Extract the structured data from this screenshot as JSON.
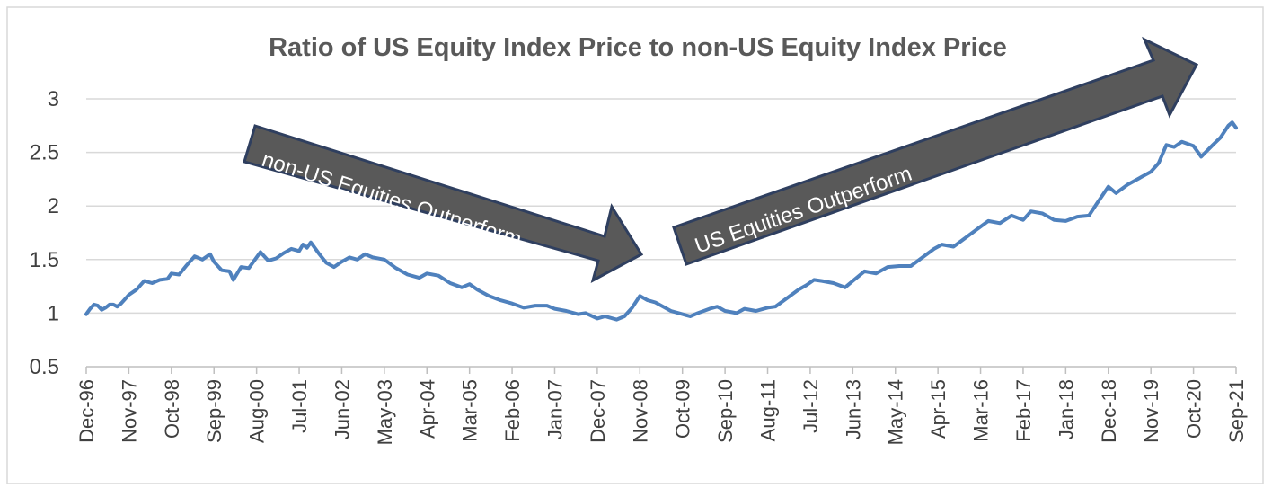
{
  "chart_data": {
    "type": "line",
    "title": "Ratio of US Equity Index Price to non-US Equity Index Price",
    "xlabel": "",
    "ylabel": "",
    "ylim": [
      0.5,
      3
    ],
    "yticks": [
      "0.5",
      "1",
      "1.5",
      "2",
      "2.5",
      "3"
    ],
    "grid": true,
    "x_tick_labels": [
      "Dec-96",
      "Nov-97",
      "Oct-98",
      "Sep-99",
      "Aug-00",
      "Jul-01",
      "Jun-02",
      "May-03",
      "Apr-04",
      "Mar-05",
      "Feb-06",
      "Jan-07",
      "Dec-07",
      "Nov-08",
      "Oct-09",
      "Sep-10",
      "Aug-11",
      "Jul-12",
      "Jun-13",
      "May-14",
      "Apr-15",
      "Mar-16",
      "Feb-17",
      "Jan-18",
      "Dec-18",
      "Nov-19",
      "Oct-20",
      "Sep-21"
    ],
    "annotations": [
      {
        "text": "non-US Equities Outperform",
        "direction": "down"
      },
      {
        "text": "US Equities Outperform",
        "direction": "up"
      }
    ],
    "series": [
      {
        "color": "#4f81bd",
        "points": [
          [
            "1996-12",
            0.99
          ],
          [
            "1997-01",
            1.04
          ],
          [
            "1997-02",
            1.08
          ],
          [
            "1997-03",
            1.07
          ],
          [
            "1997-04",
            1.03
          ],
          [
            "1997-05",
            1.05
          ],
          [
            "1997-06",
            1.08
          ],
          [
            "1997-07",
            1.08
          ],
          [
            "1997-08",
            1.06
          ],
          [
            "1997-09",
            1.09
          ],
          [
            "1997-10",
            1.13
          ],
          [
            "1997-11",
            1.17
          ],
          [
            "1998-01",
            1.22
          ],
          [
            "1998-03",
            1.3
          ],
          [
            "1998-05",
            1.28
          ],
          [
            "1998-07",
            1.31
          ],
          [
            "1998-09",
            1.32
          ],
          [
            "1998-10",
            1.37
          ],
          [
            "1998-12",
            1.36
          ],
          [
            "1999-02",
            1.45
          ],
          [
            "1999-04",
            1.53
          ],
          [
            "1999-06",
            1.5
          ],
          [
            "1999-08",
            1.55
          ],
          [
            "1999-09",
            1.48
          ],
          [
            "1999-11",
            1.4
          ],
          [
            "2000-01",
            1.39
          ],
          [
            "2000-02",
            1.31
          ],
          [
            "2000-04",
            1.43
          ],
          [
            "2000-06",
            1.42
          ],
          [
            "2000-08",
            1.52
          ],
          [
            "2000-09",
            1.57
          ],
          [
            "2000-11",
            1.49
          ],
          [
            "2001-01",
            1.51
          ],
          [
            "2001-03",
            1.56
          ],
          [
            "2001-05",
            1.6
          ],
          [
            "2001-07",
            1.58
          ],
          [
            "2001-08",
            1.64
          ],
          [
            "2001-09",
            1.61
          ],
          [
            "2001-10",
            1.66
          ],
          [
            "2001-12",
            1.56
          ],
          [
            "2002-02",
            1.47
          ],
          [
            "2002-04",
            1.43
          ],
          [
            "2002-06",
            1.48
          ],
          [
            "2002-08",
            1.52
          ],
          [
            "2002-10",
            1.5
          ],
          [
            "2002-12",
            1.55
          ],
          [
            "2003-02",
            1.52
          ],
          [
            "2003-05",
            1.5
          ],
          [
            "2003-08",
            1.42
          ],
          [
            "2003-11",
            1.36
          ],
          [
            "2004-02",
            1.33
          ],
          [
            "2004-04",
            1.37
          ],
          [
            "2004-07",
            1.35
          ],
          [
            "2004-10",
            1.28
          ],
          [
            "2005-01",
            1.24
          ],
          [
            "2005-03",
            1.27
          ],
          [
            "2005-05",
            1.22
          ],
          [
            "2005-08",
            1.16
          ],
          [
            "2005-11",
            1.12
          ],
          [
            "2006-02",
            1.09
          ],
          [
            "2006-05",
            1.05
          ],
          [
            "2006-08",
            1.07
          ],
          [
            "2006-11",
            1.07
          ],
          [
            "2007-01",
            1.04
          ],
          [
            "2007-04",
            1.02
          ],
          [
            "2007-07",
            0.99
          ],
          [
            "2007-09",
            1.0
          ],
          [
            "2007-12",
            0.95
          ],
          [
            "2008-02",
            0.97
          ],
          [
            "2008-05",
            0.94
          ],
          [
            "2008-07",
            0.97
          ],
          [
            "2008-09",
            1.05
          ],
          [
            "2008-11",
            1.16
          ],
          [
            "2009-01",
            1.12
          ],
          [
            "2009-03",
            1.1
          ],
          [
            "2009-05",
            1.06
          ],
          [
            "2009-07",
            1.02
          ],
          [
            "2009-10",
            0.99
          ],
          [
            "2009-12",
            0.97
          ],
          [
            "2010-02",
            1.0
          ],
          [
            "2010-05",
            1.04
          ],
          [
            "2010-07",
            1.06
          ],
          [
            "2010-09",
            1.02
          ],
          [
            "2010-12",
            1.0
          ],
          [
            "2011-02",
            1.04
          ],
          [
            "2011-05",
            1.02
          ],
          [
            "2011-08",
            1.05
          ],
          [
            "2011-10",
            1.06
          ],
          [
            "2012-01",
            1.14
          ],
          [
            "2012-04",
            1.22
          ],
          [
            "2012-06",
            1.26
          ],
          [
            "2012-08",
            1.31
          ],
          [
            "2012-10",
            1.3
          ],
          [
            "2013-01",
            1.28
          ],
          [
            "2013-04",
            1.24
          ],
          [
            "2013-06",
            1.3
          ],
          [
            "2013-09",
            1.39
          ],
          [
            "2013-12",
            1.37
          ],
          [
            "2014-03",
            1.43
          ],
          [
            "2014-06",
            1.44
          ],
          [
            "2014-09",
            1.44
          ],
          [
            "2014-12",
            1.52
          ],
          [
            "2015-03",
            1.6
          ],
          [
            "2015-05",
            1.64
          ],
          [
            "2015-08",
            1.62
          ],
          [
            "2015-11",
            1.7
          ],
          [
            "2016-02",
            1.78
          ],
          [
            "2016-05",
            1.86
          ],
          [
            "2016-08",
            1.84
          ],
          [
            "2016-11",
            1.91
          ],
          [
            "2017-02",
            1.87
          ],
          [
            "2017-04",
            1.95
          ],
          [
            "2017-07",
            1.93
          ],
          [
            "2017-10",
            1.87
          ],
          [
            "2018-01",
            1.86
          ],
          [
            "2018-04",
            1.9
          ],
          [
            "2018-07",
            1.91
          ],
          [
            "2018-09",
            2.02
          ],
          [
            "2018-12",
            2.18
          ],
          [
            "2019-02",
            2.12
          ],
          [
            "2019-05",
            2.2
          ],
          [
            "2019-08",
            2.26
          ],
          [
            "2019-11",
            2.32
          ],
          [
            "2020-01",
            2.4
          ],
          [
            "2020-03",
            2.57
          ],
          [
            "2020-05",
            2.55
          ],
          [
            "2020-07",
            2.6
          ],
          [
            "2020-10",
            2.56
          ],
          [
            "2020-12",
            2.46
          ],
          [
            "2021-03",
            2.57
          ],
          [
            "2021-05",
            2.64
          ],
          [
            "2021-07",
            2.75
          ],
          [
            "2021-08",
            2.78
          ],
          [
            "2021-09",
            2.73
          ]
        ]
      }
    ]
  }
}
